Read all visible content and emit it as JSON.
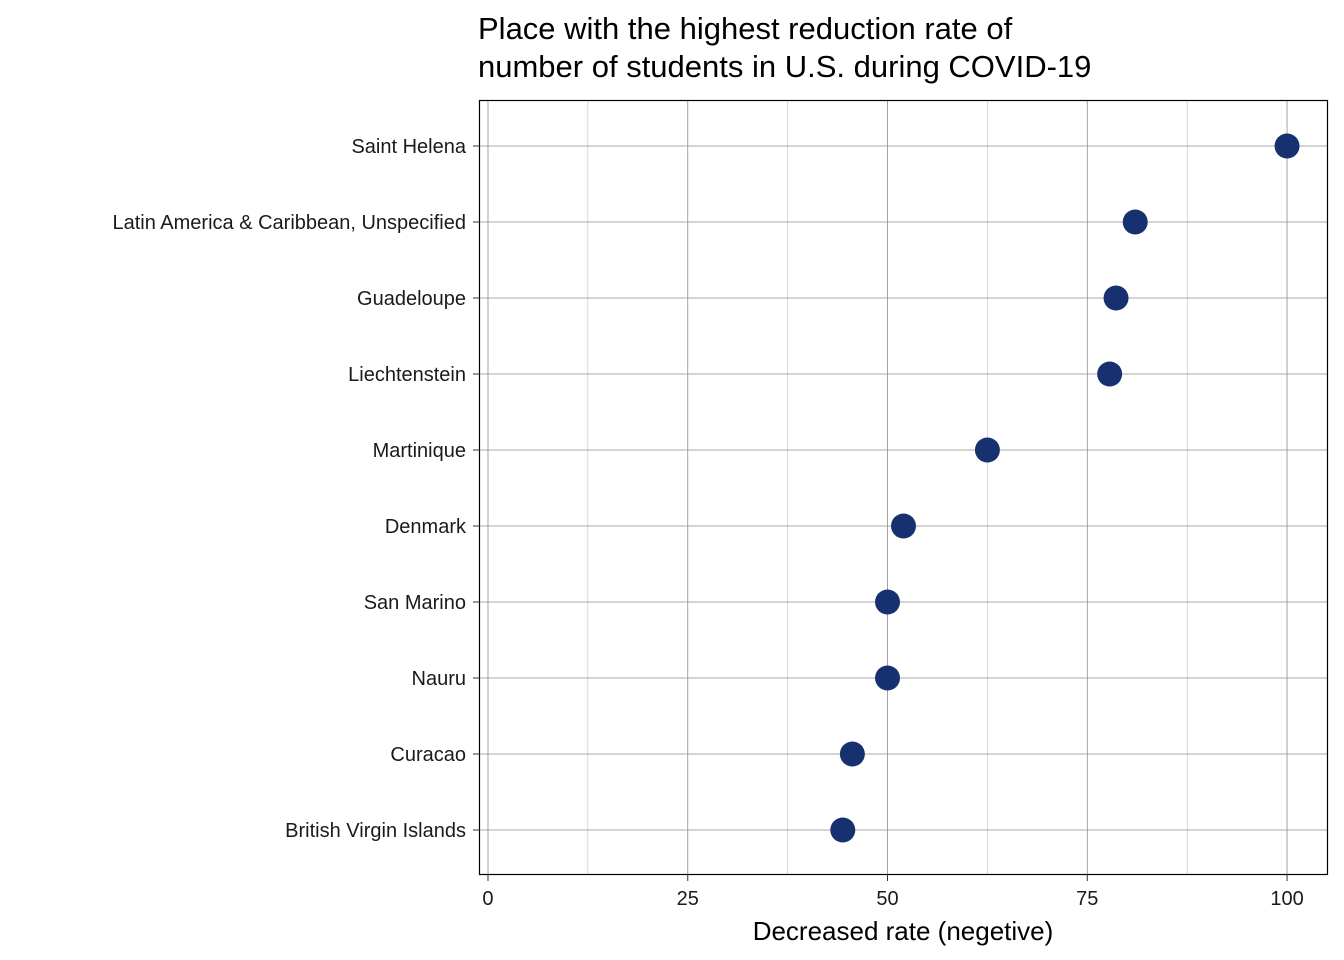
{
  "chart_data": {
    "type": "scatter",
    "title_lines": [
      "Place with the highest reduction rate of",
      "number of students in U.S. during COVID-19"
    ],
    "xlabel": "Decreased rate (negetive)",
    "ylabel": "",
    "xlim": [
      -1,
      105
    ],
    "x_ticks": [
      0,
      25,
      50,
      75,
      100
    ],
    "grid": true,
    "point_color": "#17306f",
    "categories": [
      "Saint Helena",
      "Latin America & Caribbean, Unspecified",
      "Guadeloupe",
      "Liechtenstein",
      "Martinique",
      "Denmark",
      "San Marino",
      "Nauru",
      "Curacao",
      "British Virgin Islands"
    ],
    "values": [
      100,
      81,
      78.6,
      77.8,
      62.5,
      52,
      50,
      50,
      45.6,
      44.4
    ]
  }
}
